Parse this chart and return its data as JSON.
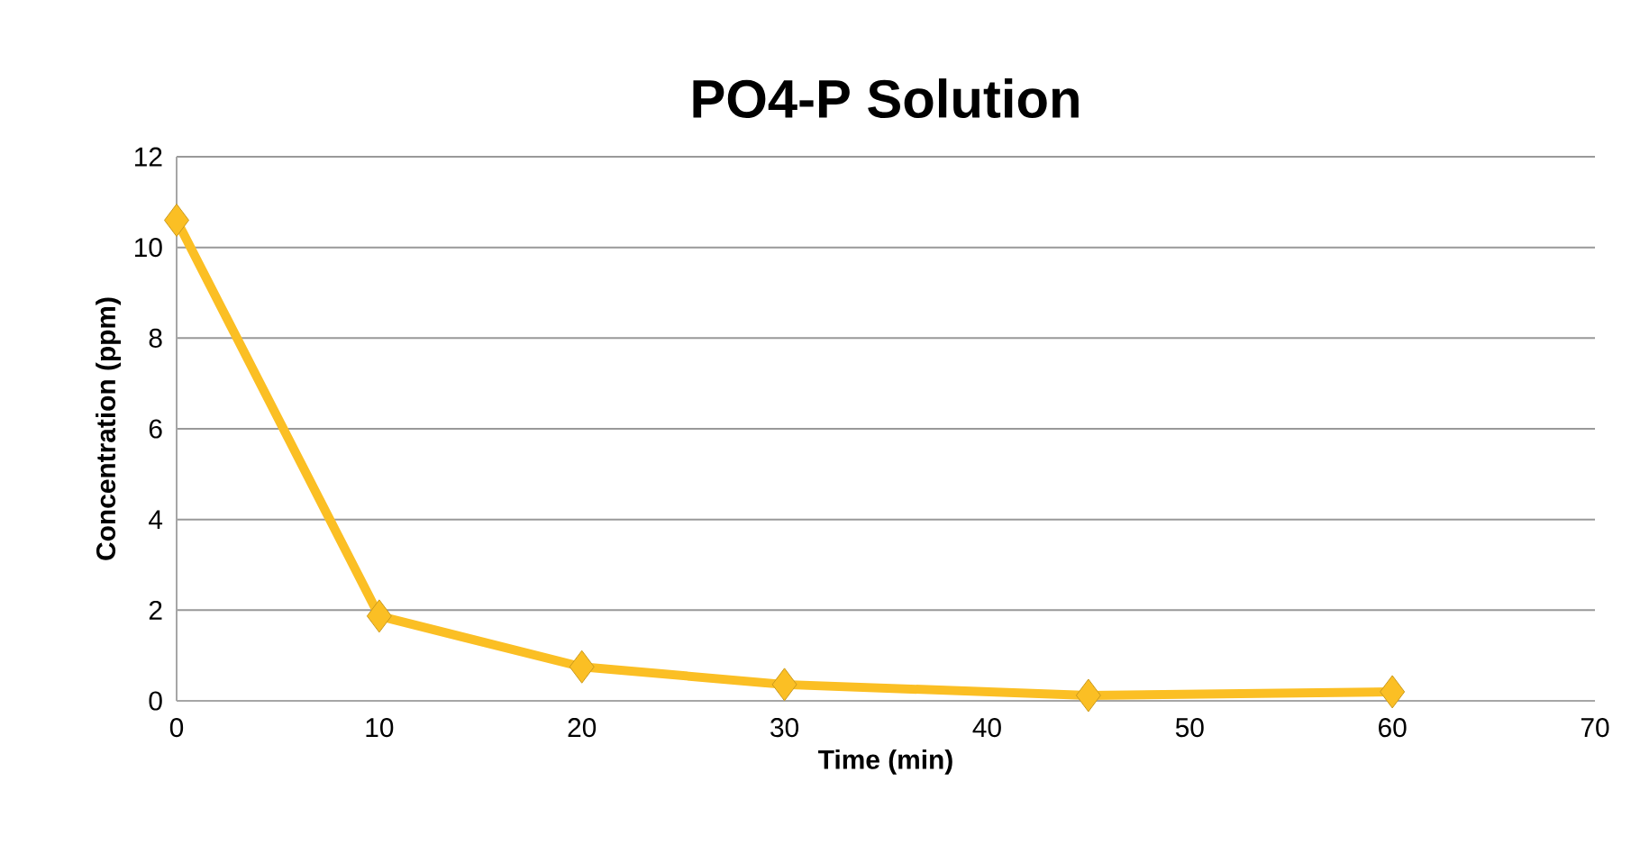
{
  "chart_data": {
    "type": "line",
    "title": "PO4-P Solution",
    "xlabel": "Time (min)",
    "ylabel": "Concentration (ppm)",
    "x": [
      0,
      10,
      20,
      30,
      45,
      60
    ],
    "series": [
      {
        "color": "#fbbf24",
        "values": [
          10.6,
          1.87,
          0.75,
          0.36,
          0.12,
          0.2
        ]
      }
    ],
    "xlim": [
      0,
      70
    ],
    "xticks": [
      0,
      10,
      20,
      30,
      40,
      50,
      60,
      70
    ],
    "ylim": [
      0,
      12
    ],
    "yticks": [
      0,
      2,
      4,
      6,
      8,
      10,
      12
    ],
    "grid": "y",
    "marker": "diamond",
    "line_style": "solid"
  }
}
